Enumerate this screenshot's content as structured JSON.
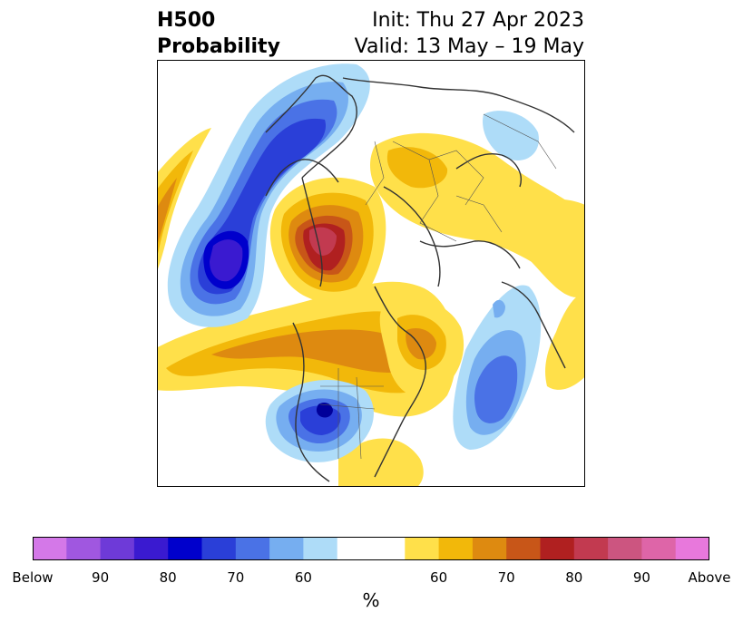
{
  "title": {
    "left_line1": "H500",
    "left_line2": "Probability",
    "right_line1": "Init: Thu 27 Apr 2023",
    "right_line2": "Valid: 13 May – 19 May"
  },
  "colorbar": {
    "colors": [
      "#d478e8",
      "#a057e0",
      "#6e3ad8",
      "#3a1ad0",
      "#0000cc",
      "#2a3fd8",
      "#4a72e6",
      "#76aef0",
      "#aedcf8",
      "#ffffff",
      "#ffffff",
      "#ffe04a",
      "#f2b80a",
      "#de8a10",
      "#c85618",
      "#b02020",
      "#c23a50",
      "#cc5580",
      "#de65a8",
      "#e878dc"
    ],
    "tick_labels": [
      "Below",
      "90",
      "80",
      "70",
      "60",
      "60",
      "70",
      "80",
      "90",
      "Above"
    ],
    "units": "%"
  },
  "map": {
    "projection": "north-polar-stereographic",
    "field": "H500 anomaly probability"
  }
}
